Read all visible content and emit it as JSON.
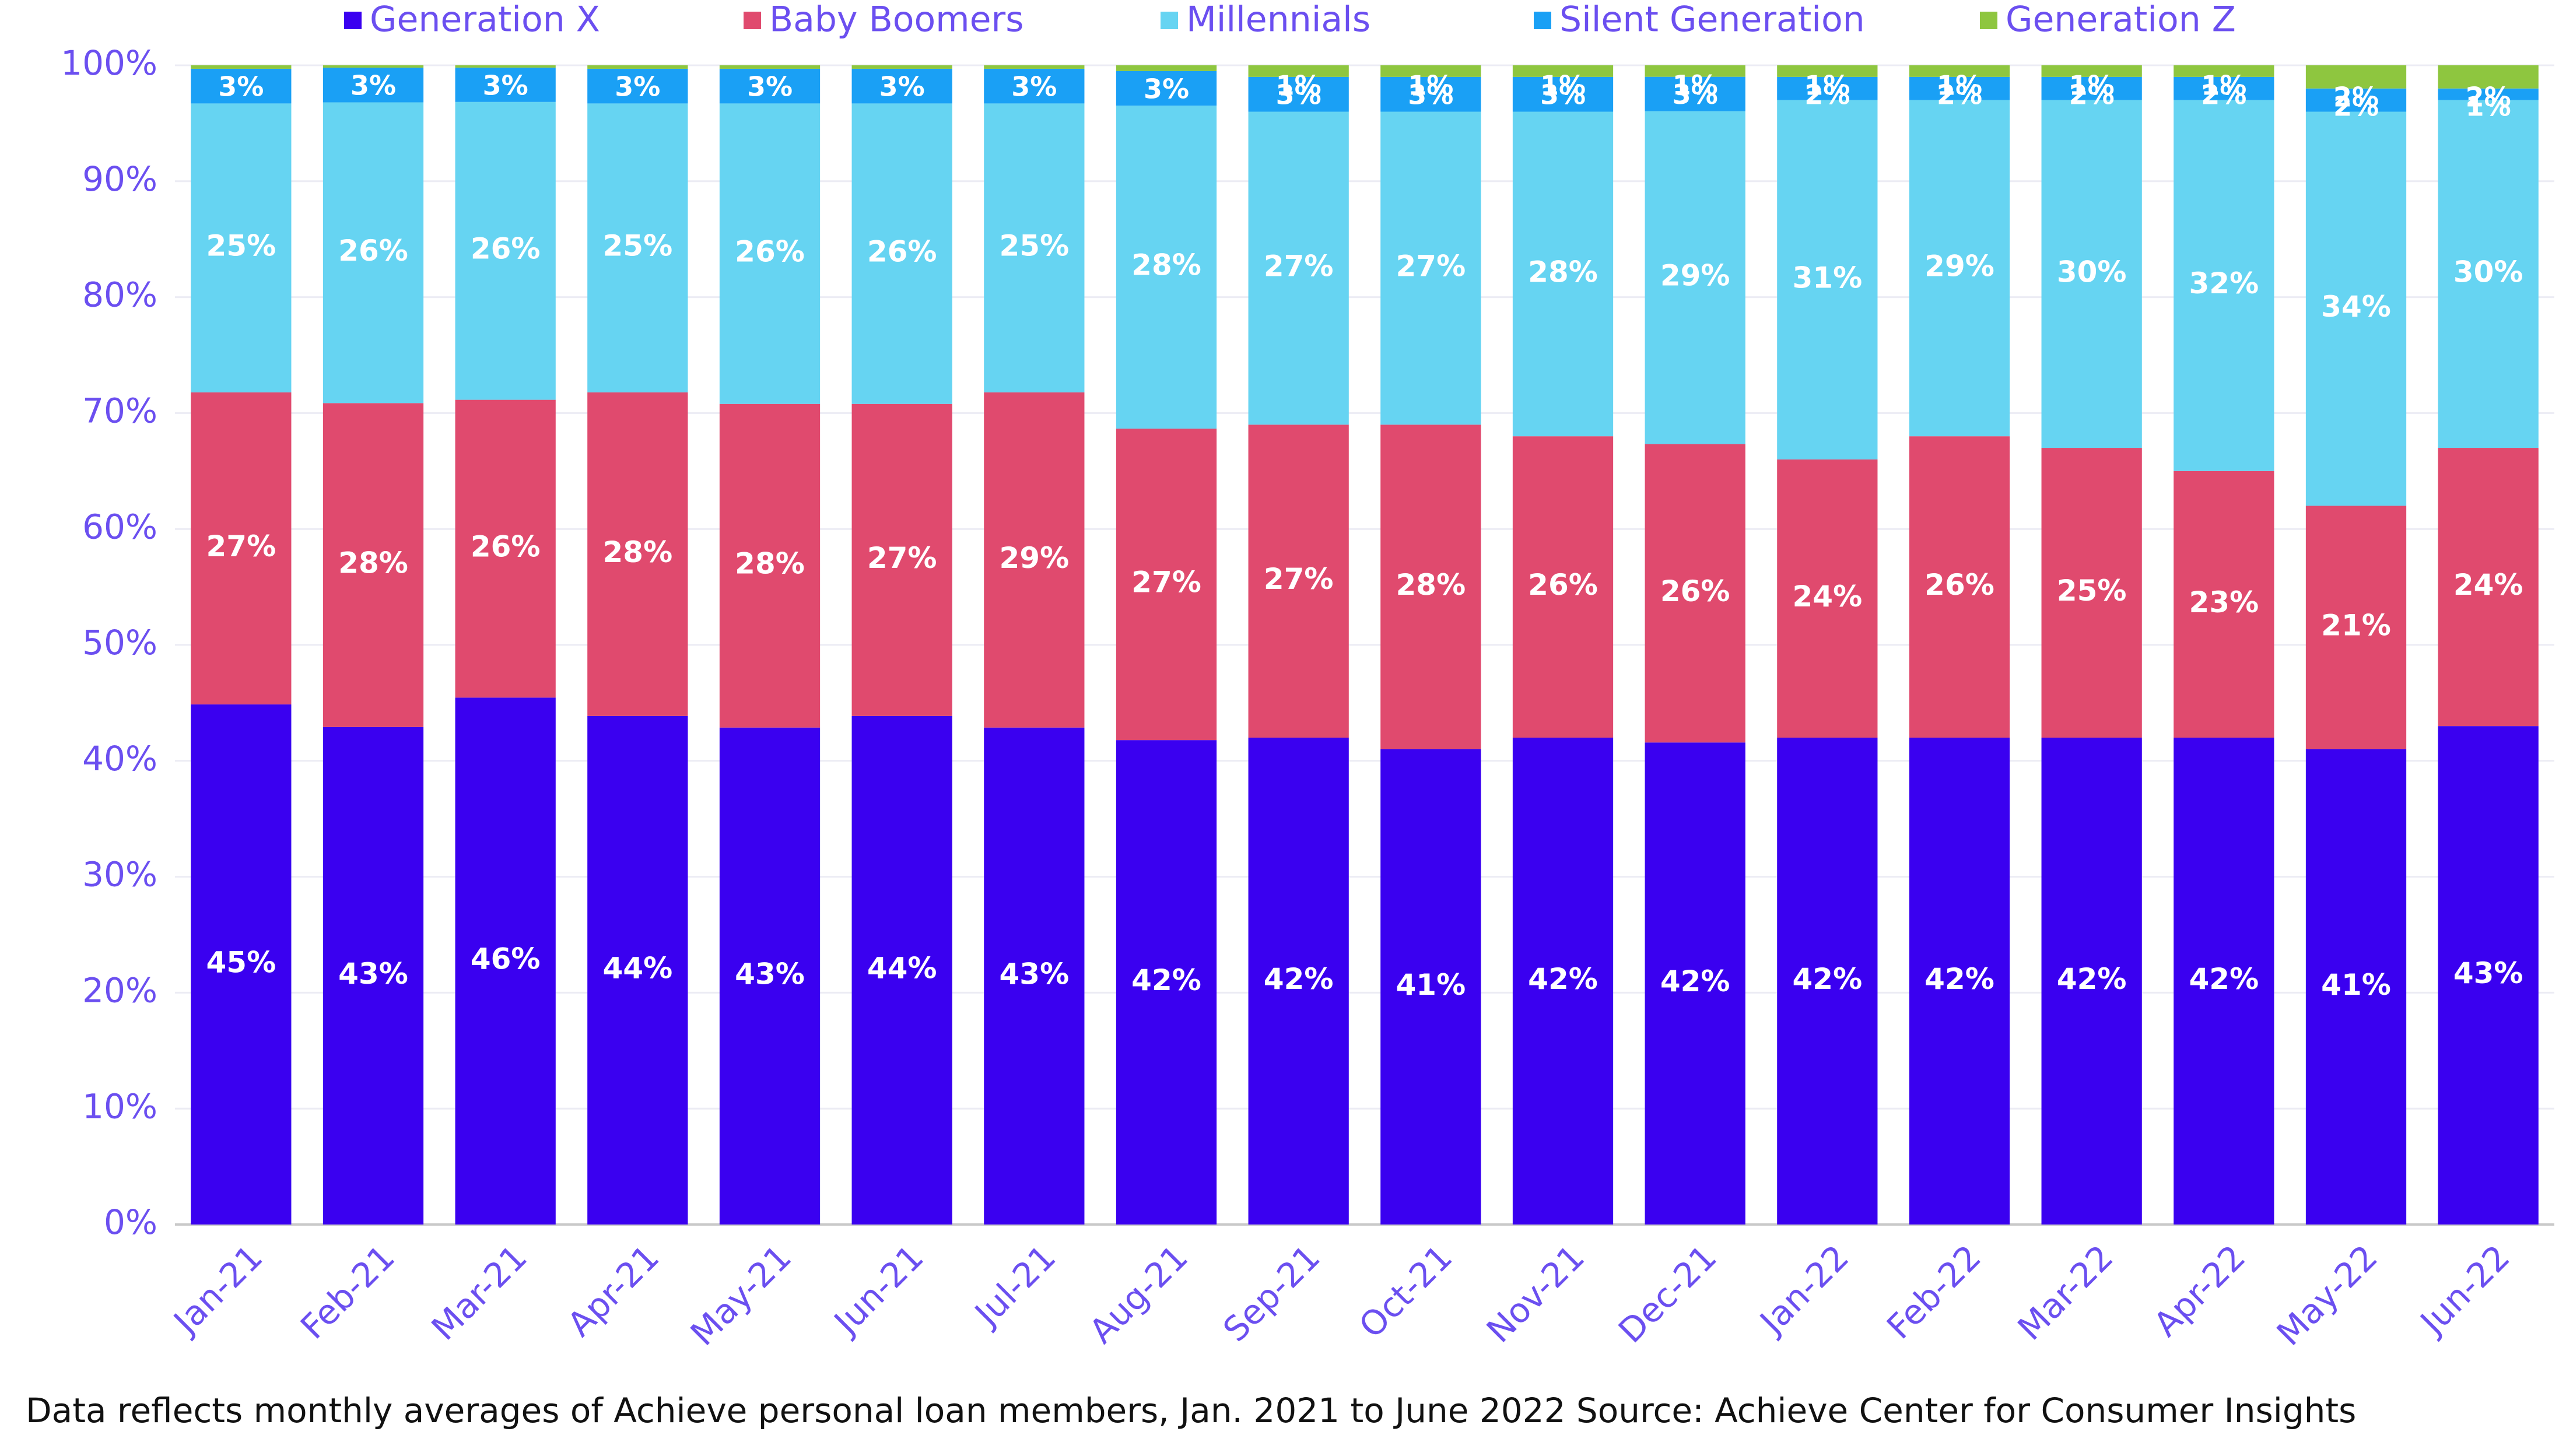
{
  "chart_data": {
    "type": "bar",
    "stacked": true,
    "percent_scale": true,
    "categories": [
      "Jan-21",
      "Feb-21",
      "Mar-21",
      "Apr-21",
      "May-21",
      "Jun-21",
      "Jul-21",
      "Aug-21",
      "Sep-21",
      "Oct-21",
      "Nov-21",
      "Dec-21",
      "Jan-22",
      "Feb-22",
      "Mar-22",
      "Apr-22",
      "May-22",
      "Jun-22"
    ],
    "series": [
      {
        "name": "Generation X",
        "color": "#3a00f0",
        "values": [
          45,
          43,
          46,
          44,
          43,
          44,
          43,
          42,
          42,
          41,
          42,
          42,
          42,
          42,
          42,
          42,
          41,
          43
        ]
      },
      {
        "name": "Baby Boomers",
        "color": "#e04a6e",
        "values": [
          27,
          28,
          26,
          28,
          28,
          27,
          29,
          27,
          27,
          28,
          26,
          26,
          24,
          26,
          25,
          23,
          21,
          24
        ]
      },
      {
        "name": "Millennials",
        "color": "#66d4f2",
        "values": [
          25,
          26,
          26,
          25,
          26,
          26,
          25,
          28,
          27,
          27,
          28,
          29,
          31,
          29,
          30,
          32,
          34,
          30
        ]
      },
      {
        "name": "Silent Generation",
        "color": "#1aa0f5",
        "values": [
          3,
          3,
          3,
          3,
          3,
          3,
          3,
          3,
          3,
          3,
          3,
          3,
          2,
          2,
          2,
          2,
          2,
          1
        ]
      },
      {
        "name": "Generation Z",
        "color": "#8ec63f",
        "values": [
          0.3,
          0.2,
          0.2,
          0.3,
          0.3,
          0.3,
          0.3,
          0.5,
          1,
          1,
          1,
          1,
          1,
          1,
          1,
          1,
          2,
          2
        ]
      }
    ],
    "data_labels": [
      [
        "45%",
        "43%",
        "46%",
        "44%",
        "43%",
        "44%",
        "43%",
        "42%",
        "42%",
        "41%",
        "42%",
        "42%",
        "42%",
        "42%",
        "42%",
        "42%",
        "41%",
        "43%"
      ],
      [
        "27%",
        "28%",
        "26%",
        "28%",
        "28%",
        "27%",
        "29%",
        "27%",
        "27%",
        "28%",
        "26%",
        "26%",
        "24%",
        "26%",
        "25%",
        "23%",
        "21%",
        "24%"
      ],
      [
        "25%",
        "26%",
        "26%",
        "25%",
        "26%",
        "26%",
        "25%",
        "28%",
        "27%",
        "27%",
        "28%",
        "29%",
        "31%",
        "29%",
        "30%",
        "32%",
        "34%",
        "30%"
      ],
      [
        "3%",
        "3%",
        "3%",
        "3%",
        "3%",
        "3%",
        "3%",
        "3%",
        "3%",
        "3%",
        "3%",
        "3%",
        "2%",
        "2%",
        "2%",
        "2%",
        "2%",
        "1%"
      ],
      [
        "",
        "",
        "",
        "",
        "",
        "",
        "",
        "",
        "1%",
        "1%",
        "1%",
        "1%",
        "1%",
        "1%",
        "1%",
        "1%",
        "2%",
        "2%"
      ]
    ],
    "yticks": [
      "0%",
      "10%",
      "20%",
      "30%",
      "40%",
      "50%",
      "60%",
      "70%",
      "80%",
      "90%",
      "100%"
    ],
    "ylim": [
      0,
      100
    ],
    "legend_position": "top",
    "grid": true
  },
  "caption": "Data reflects monthly averages of Achieve personal loan members, Jan. 2021 to June 2022 Source: Achieve Center for Consumer Insights"
}
